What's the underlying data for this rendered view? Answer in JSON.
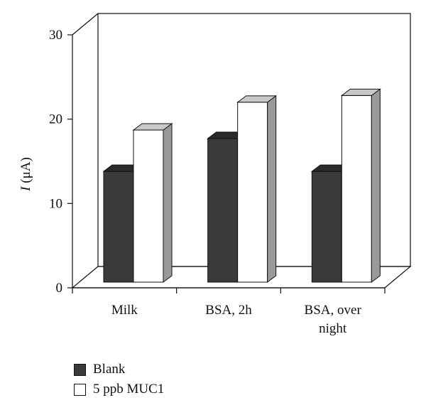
{
  "chart_data": {
    "type": "bar",
    "style": "3d-clustered-column",
    "categories": [
      "Milk",
      "BSA, 2h",
      "BSA, over night"
    ],
    "category_lines": [
      [
        "Milk"
      ],
      [
        "BSA, 2h"
      ],
      [
        "BSA, over",
        "night"
      ]
    ],
    "series": [
      {
        "name": "Blank",
        "values": [
          13.3,
          17.2,
          13.3
        ],
        "color": "#3a3a3a",
        "side_color": "#222222",
        "top_color": "#2a2a2a"
      },
      {
        "name": "5 ppb MUC1",
        "values": [
          18.2,
          21.5,
          22.3
        ],
        "color": "#ffffff",
        "side_color": "#9a9a9a",
        "top_color": "#c8c8c8"
      }
    ],
    "ylabel_italic": "I",
    "ylabel_rest": " (μA)",
    "ylim": [
      0,
      30
    ],
    "yticks": [
      "0",
      "10",
      "20",
      "30"
    ],
    "grid": false,
    "legend_position": "bottom-left"
  }
}
